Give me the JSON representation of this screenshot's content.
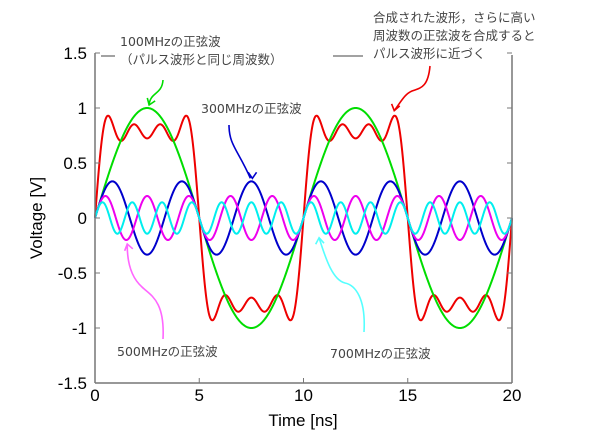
{
  "chart_data": {
    "type": "line",
    "title": "",
    "xlabel": "Time [ns]",
    "ylabel": "Voltage [V]",
    "xlim": [
      0,
      20
    ],
    "ylim": [
      -1.5,
      1.5
    ],
    "xticks": [
      0,
      5,
      10,
      15,
      20
    ],
    "xtick_labels": [
      "0",
      "5",
      "10",
      "15",
      "20"
    ],
    "yticks": [
      -1.5,
      -1,
      -0.5,
      0,
      0.5,
      1,
      1.5
    ],
    "ytick_labels": [
      "-1.5",
      "-1",
      "-0.5",
      "0",
      "0.5",
      "1",
      "1.5"
    ],
    "grid": false,
    "legend": "none",
    "series": [
      {
        "name": "100MHzの正弦波",
        "frequency_mhz": 100,
        "amplitude": 1.0,
        "color": "#00dd00",
        "formula": "sin(2π·0.1·t)"
      },
      {
        "name": "300MHzの正弦波",
        "frequency_mhz": 300,
        "amplitude": 0.3333,
        "color": "#0000cc",
        "formula": "(1/3)·sin(2π·0.3·t)"
      },
      {
        "name": "500MHzの正弦波",
        "frequency_mhz": 500,
        "amplitude": 0.2,
        "color": "#ee00ee",
        "formula": "(1/5)·sin(2π·0.5·t)"
      },
      {
        "name": "700MHzの正弦波",
        "frequency_mhz": 700,
        "amplitude": 0.1429,
        "color": "#00eeee",
        "formula": "(1/7)·sin(2π·0.7·t)"
      },
      {
        "name": "合成された波形",
        "frequency_mhz": null,
        "amplitude": 0.93,
        "color": "#ee0000",
        "formula": "sum of the four sinusoids"
      }
    ],
    "annotations": [
      {
        "id": "ann100",
        "lines": [
          "100MHzの正弦波",
          "（パルス波形と同じ周波数）"
        ],
        "color": "#00dd00",
        "points_to": {
          "x": 2.5,
          "y": 1.0
        }
      },
      {
        "id": "ann300",
        "lines": [
          "300MHzの正弦波"
        ],
        "color": "#0000cc",
        "points_to": {
          "x": 7.5,
          "y": 0.3333
        }
      },
      {
        "id": "ann500",
        "lines": [
          "500MHzの正弦波"
        ],
        "color": "#ff66ff",
        "points_to": {
          "x": 1.5,
          "y": -0.2
        }
      },
      {
        "id": "ann700",
        "lines": [
          "700MHzの正弦波"
        ],
        "color": "#55ffff",
        "points_to": {
          "x": 10.7,
          "y": -0.143
        }
      },
      {
        "id": "annSum",
        "lines": [
          "合成された波形，さらに高い",
          "周波数の正弦波を合成すると",
          "パルス波形に近づく"
        ],
        "color": "#ee0000",
        "points_to": {
          "x": 14.4,
          "y": 0.93
        }
      }
    ]
  }
}
